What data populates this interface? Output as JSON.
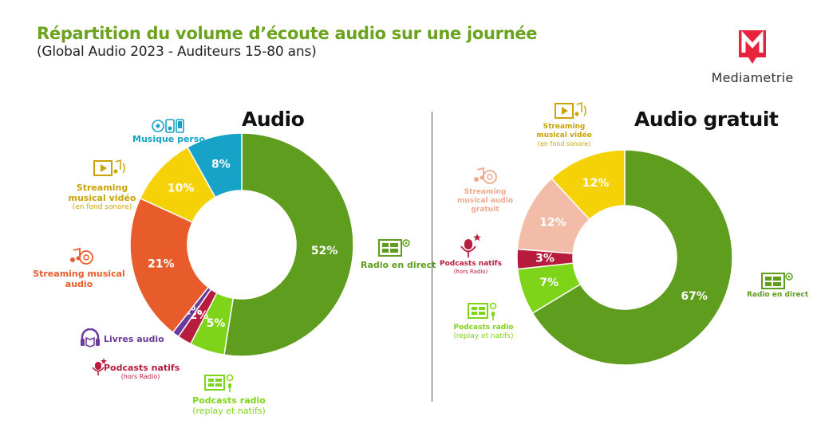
{
  "header": {
    "title": "Répartition du volume d’écoute audio sur une journée",
    "subtitle": "(Global Audio 2023 - Auditeurs 15-80 ans)"
  },
  "logo": {
    "mark": "M",
    "name": "Mediametrie",
    "icon": "mediametrie-logo"
  },
  "chart_data": [
    {
      "type": "pie",
      "title": "Audio",
      "unit": "%",
      "slices": [
        {
          "label": "Radio en direct",
          "sub": "",
          "value": 52,
          "value_label": "52%",
          "color": "#5e9d1e",
          "icon": "radio-icon"
        },
        {
          "label": "Podcasts radio",
          "sub": "(replay et natifs)",
          "value": 5,
          "value_label": "5%",
          "color": "#7dd418",
          "icon": "podcast-radio-icon"
        },
        {
          "label": "Podcasts natifs",
          "sub": "(hors Radio)",
          "value": 2,
          "value_label": "2%",
          "color": "#b71c3c",
          "icon": "microphone-icon"
        },
        {
          "label": "Livres audio",
          "sub": "",
          "value": 1,
          "value_label": "1%",
          "color": "#6a3a9e",
          "icon": "headphones-book-icon"
        },
        {
          "label": "Streaming musical audio",
          "sub": "",
          "value": 21,
          "value_label": "21%",
          "color": "#e85c2c",
          "icon": "music-stream-icon"
        },
        {
          "label": "Streaming musical vidéo",
          "sub": "(en fond sonore)",
          "value": 10,
          "value_label": "10%",
          "color": "#f5d208",
          "icon": "video-music-icon"
        },
        {
          "label": "Musique perso",
          "sub": "",
          "value": 8,
          "value_label": "8%",
          "color": "#16a3c7",
          "icon": "personal-music-icon"
        }
      ]
    },
    {
      "type": "pie",
      "title": "Audio gratuit",
      "unit": "%",
      "slices": [
        {
          "label": "Radio en direct",
          "sub": "",
          "value": 67,
          "value_label": "67%",
          "color": "#5e9d1e",
          "icon": "radio-icon"
        },
        {
          "label": "Podcasts radio",
          "sub": "(replay et natifs)",
          "value": 7,
          "value_label": "7%",
          "color": "#7dd418",
          "icon": "podcast-radio-icon"
        },
        {
          "label": "Podcasts natifs",
          "sub": "(hors Radio)",
          "value": 3,
          "value_label": "3%",
          "color": "#b71c3c",
          "icon": "microphone-icon"
        },
        {
          "label": "Streaming musical audio gratuit",
          "sub": "",
          "value": 12,
          "value_label": "12%",
          "color": "#f2bca9",
          "icon": "music-stream-icon"
        },
        {
          "label": "Streaming musical vidéo",
          "sub": "(en fond sonore)",
          "value": 12,
          "value_label": "12%",
          "color": "#f5d208",
          "icon": "video-music-icon"
        }
      ]
    }
  ]
}
